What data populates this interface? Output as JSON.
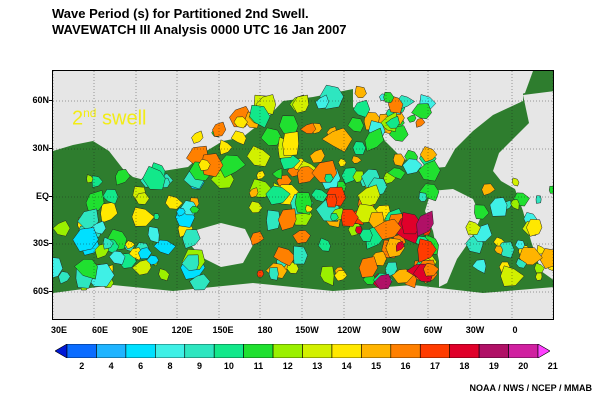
{
  "title": {
    "line1": "Wave Period (s) for Partitioned 2nd Swell.",
    "line2": "WAVEWATCH III Analysis 0000 UTC 16 Jan 2007"
  },
  "overlay": {
    "ordinal": "2",
    "suffix": "nd",
    "word": "swell"
  },
  "lat_labels": [
    "60N",
    "30N",
    "EQ",
    "30S",
    "60S"
  ],
  "lon_labels": [
    "30E",
    "60E",
    "90E",
    "120E",
    "150E",
    "180",
    "150W",
    "120W",
    "90W",
    "60W",
    "30W",
    "0"
  ],
  "colorbar": {
    "labels": [
      "2",
      "4",
      "6",
      "8",
      "9",
      "10",
      "11",
      "12",
      "13",
      "14",
      "15",
      "16",
      "17",
      "18",
      "19",
      "20",
      "21"
    ],
    "colors": [
      "#0018d6",
      "#0a6cff",
      "#1fb4ff",
      "#00e0ff",
      "#3ff0e6",
      "#2ee6c0",
      "#12e88a",
      "#20e030",
      "#9af000",
      "#d2f000",
      "#ffe800",
      "#ffb400",
      "#ff8000",
      "#ff3c00",
      "#e0002a",
      "#b01066",
      "#d020a0",
      "#ff40ff"
    ]
  },
  "map_colors": {
    "ocean_base": "#2e7d2e",
    "land": "#e8e8e8"
  },
  "credit": "NOAA / NWS / NCEP / MMAB"
}
